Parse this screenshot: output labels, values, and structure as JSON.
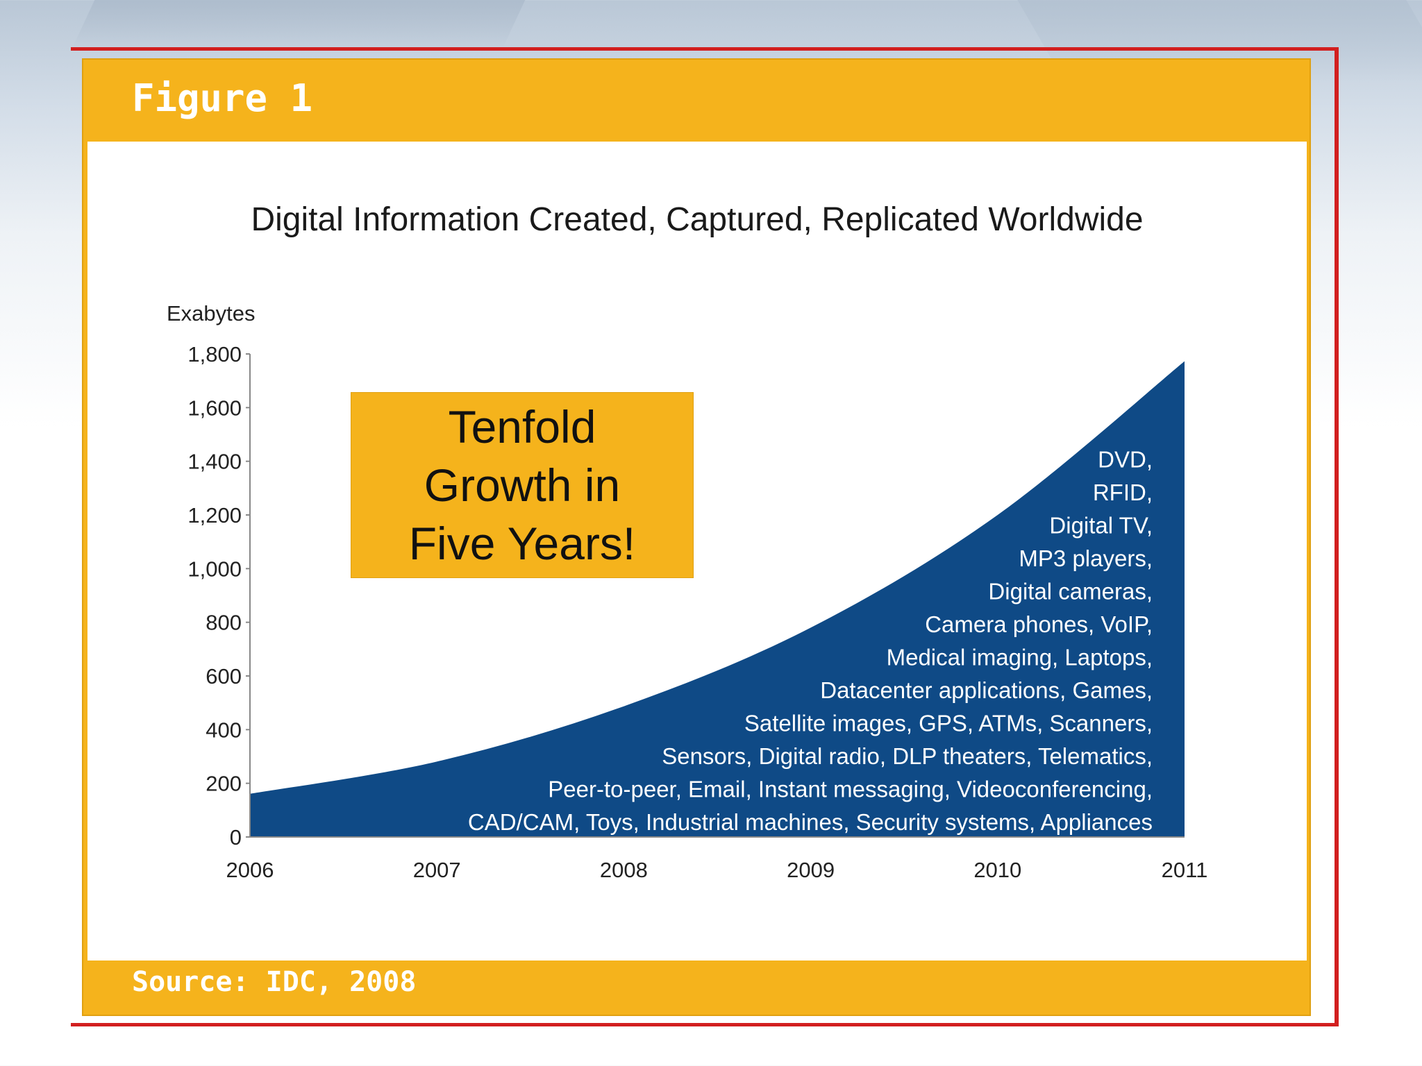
{
  "figure": {
    "header_label": "Figure 1",
    "source_label": "Source: IDC, 2008"
  },
  "colors": {
    "figure_orange": "#f5b31c",
    "area_blue": "#0f4a86",
    "frame_red": "#d21f1f"
  },
  "chart_data": {
    "type": "area",
    "title": "Digital Information Created, Captured, Replicated Worldwide",
    "ylabel": "Exabytes",
    "xlabel": "",
    "x": [
      2006,
      2007,
      2008,
      2009,
      2010,
      2011
    ],
    "series": [
      {
        "values": [
          161,
          281,
          487,
          780,
          1200,
          1773
        ]
      }
    ],
    "ylim": [
      0,
      1800
    ],
    "xlim": [
      2006,
      2011
    ],
    "yticks": [
      0,
      200,
      400,
      600,
      800,
      1000,
      1200,
      1400,
      1600,
      1800
    ],
    "ytick_labels": [
      "0",
      "200",
      "400",
      "600",
      "800",
      "1,000",
      "1,200",
      "1,400",
      "1,600",
      "1,800"
    ],
    "xtick_labels": [
      "2006",
      "2007",
      "2008",
      "2009",
      "2010",
      "2011"
    ],
    "grid": false,
    "legend": "none",
    "callout": [
      "Tenfold",
      "Growth in",
      "Five Years!"
    ],
    "area_labels": [
      "DVD,",
      "RFID,",
      "Digital TV,",
      "MP3 players,",
      "Digital cameras,",
      "Camera phones, VoIP,",
      "Medical imaging, Laptops,",
      "Datacenter applications, Games,",
      "Satellite images, GPS, ATMs, Scanners,",
      "Sensors, Digital radio, DLP theaters, Telematics,",
      "Peer-to-peer, Email, Instant messaging, Videoconferencing,",
      "CAD/CAM, Toys, Industrial machines, Security systems, Appliances"
    ]
  }
}
